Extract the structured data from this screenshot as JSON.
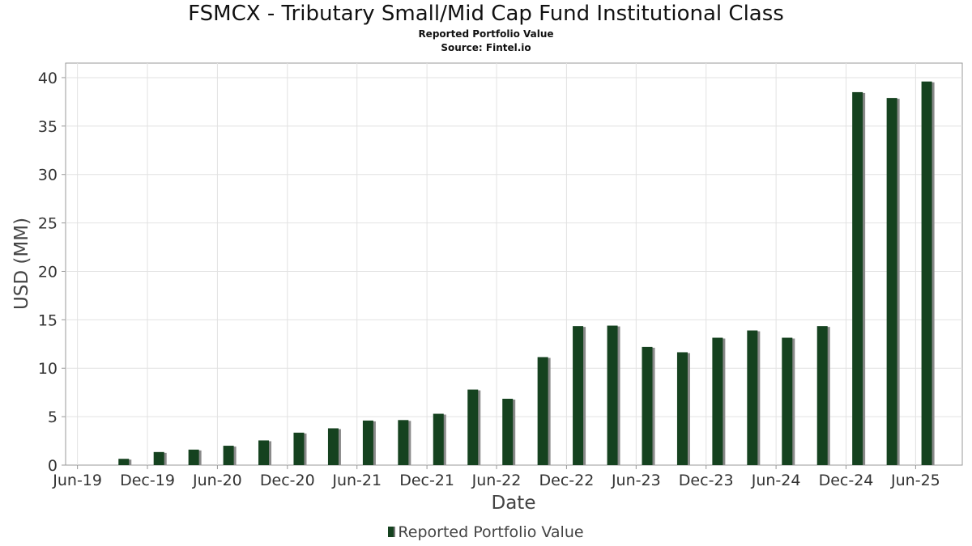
{
  "chart_data": {
    "type": "bar",
    "title": "FSMCX - Tributary Small/Mid Cap Fund Institutional Class",
    "subtitle": "Reported Portfolio Value",
    "source": "Source: Fintel.io",
    "xlabel": "Date",
    "ylabel": "USD (MM)",
    "xlim": [
      "2019-05-01",
      "2025-10-01"
    ],
    "ylim": [
      0,
      41.5
    ],
    "x_ticks": [
      "Jun-19",
      "Dec-19",
      "Jun-20",
      "Dec-20",
      "Jun-21",
      "Dec-21",
      "Jun-22",
      "Dec-22",
      "Jun-23",
      "Dec-23",
      "Jun-24",
      "Dec-24",
      "Jun-25"
    ],
    "x_tick_dates": [
      "2019-06-01",
      "2019-12-01",
      "2020-06-01",
      "2020-12-01",
      "2021-06-01",
      "2021-12-01",
      "2022-06-01",
      "2022-12-01",
      "2023-06-01",
      "2023-12-01",
      "2024-06-01",
      "2024-12-01",
      "2025-06-01"
    ],
    "y_ticks": [
      0,
      5,
      10,
      15,
      20,
      25,
      30,
      35,
      40
    ],
    "grid": true,
    "legend": "bottom-center",
    "colors": {
      "bar": "#15421f",
      "shadow": "#8a8a8a"
    },
    "series": [
      {
        "name": "Reported Portfolio Value",
        "x": [
          "2019-09-30",
          "2019-12-31",
          "2020-03-31",
          "2020-06-30",
          "2020-09-30",
          "2020-12-31",
          "2021-03-31",
          "2021-06-30",
          "2021-09-30",
          "2021-12-31",
          "2022-03-31",
          "2022-06-30",
          "2022-09-30",
          "2022-12-31",
          "2023-03-31",
          "2023-06-30",
          "2023-09-30",
          "2023-12-31",
          "2024-03-31",
          "2024-06-30",
          "2024-09-30",
          "2024-12-31",
          "2025-03-31",
          "2025-06-30"
        ],
        "values": [
          0.65,
          1.35,
          1.6,
          2.0,
          2.55,
          3.35,
          3.8,
          4.6,
          4.65,
          5.3,
          7.8,
          6.85,
          11.15,
          14.35,
          14.4,
          12.2,
          11.65,
          13.15,
          13.9,
          13.15,
          14.35,
          38.5,
          37.9,
          39.6
        ]
      }
    ]
  }
}
